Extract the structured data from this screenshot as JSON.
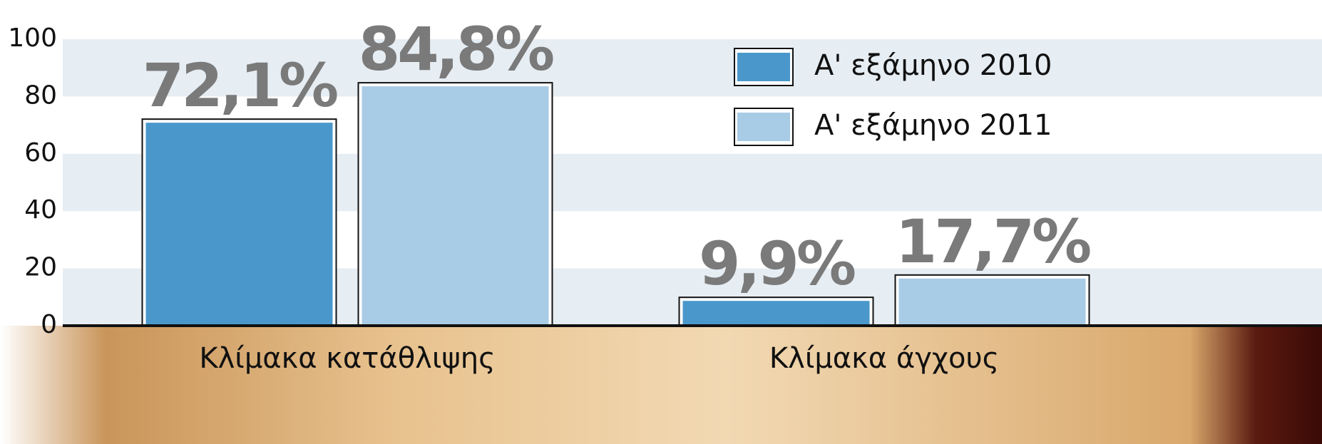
{
  "chart_data": {
    "type": "bar",
    "categories": [
      "Κλίμακα κατάθλιψης",
      "Κλίμακα άγχους"
    ],
    "series": [
      {
        "name": "Α' εξάμηνο 2010",
        "color": "#4a98cb",
        "values": [
          72.1,
          9.9
        ],
        "value_labels": [
          "72,1%",
          "9,9%"
        ]
      },
      {
        "name": "Α' εξάμηνο 2011",
        "color": "#a8cbe6",
        "values": [
          84.8,
          17.7
        ],
        "value_labels": [
          "84,8%",
          "17,7%"
        ]
      }
    ],
    "ylim": [
      0,
      100
    ],
    "yticks": [
      0,
      20,
      40,
      60,
      80,
      100
    ],
    "grid": true,
    "legend": "upper right"
  }
}
